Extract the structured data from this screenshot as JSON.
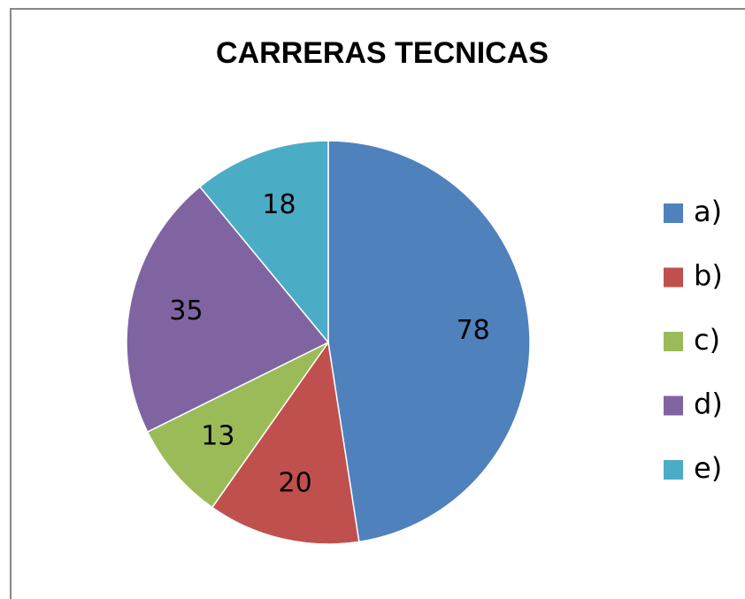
{
  "chart_data": {
    "type": "pie",
    "title": "CARRERAS TECNICAS",
    "categories": [
      "a)",
      "b)",
      "c)",
      "d)",
      "e)"
    ],
    "values": [
      78,
      20,
      13,
      35,
      18
    ],
    "colors": [
      "#4f81bd",
      "#c0504d",
      "#9bbb59",
      "#8064a2",
      "#4bacc6"
    ],
    "legend": "right"
  }
}
